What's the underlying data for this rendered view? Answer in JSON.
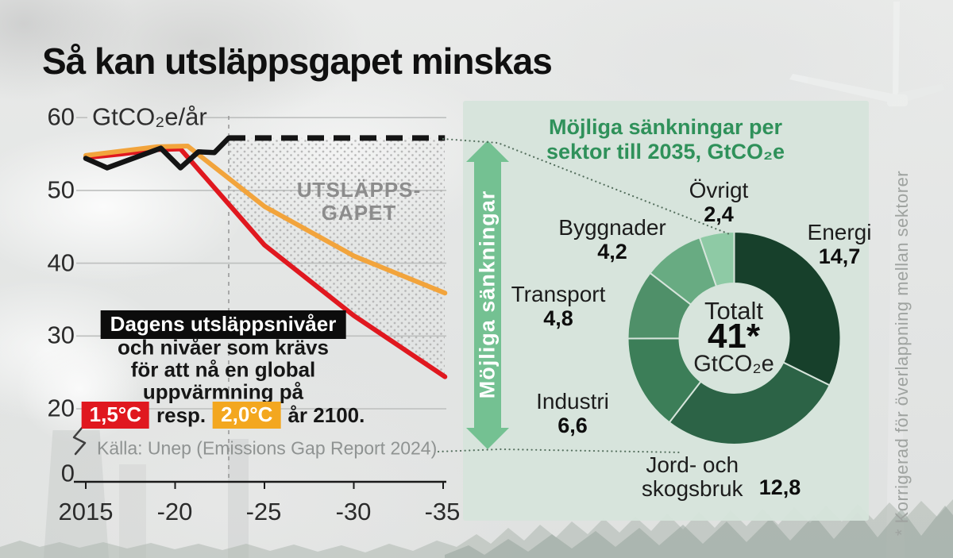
{
  "page_title": "Så kan utsläppsgapet minskas",
  "line_chart": {
    "unit_label": "GtCO₂e/år",
    "gap_label_1": "UTSLÄPPS-",
    "gap_label_2": "GAPET",
    "note": {
      "line1": "Dagens utsläppsnivåer",
      "line2": "och nivåer som krävs",
      "line3": "för att nå en global",
      "line4": "uppvärmning på",
      "temp_15": "1,5°C",
      "mid": "resp.",
      "temp_20": "2,0°C",
      "tail": "år 2100."
    },
    "source": "Källa: Unep (Emissions Gap Report 2024)"
  },
  "panel": {
    "title_line1": "Möjliga sänkningar per",
    "title_line2": "sektor till 2035, GtCO₂e",
    "arrow_label": "Möjliga sänkningar",
    "footnote": "* Korrigerad för överlappning mellan sektorer"
  },
  "colors": {
    "red_line": "#e0181f",
    "orange_line": "#f2a43c",
    "black_line": "#141414",
    "panel_green": "#d6e4db",
    "arrow_green": "#74c192",
    "title_green": "#2f915a",
    "grid_gray": "#bdbfbe",
    "dot_gray": "#b0b0b0"
  },
  "chart_data": [
    {
      "type": "line",
      "ylabel": "GtCO₂e/år",
      "x_range": [
        2015,
        2035
      ],
      "ylim": [
        0,
        60
      ],
      "y_ticks": [
        60,
        50,
        40,
        30,
        20,
        0
      ],
      "x_ticks": [
        {
          "year": 2015,
          "label": "2015"
        },
        {
          "year": 2020,
          "label": "-20"
        },
        {
          "year": 2025,
          "label": "-25"
        },
        {
          "year": 2030,
          "label": "-30"
        },
        {
          "year": 2035,
          "label": "-35"
        }
      ],
      "history_end_year": 2023,
      "series": [
        {
          "name": "1,5°C",
          "color": "#e0181f",
          "style": "solid",
          "width": 6,
          "points": [
            [
              2015,
              54.5
            ],
            [
              2017,
              55.0
            ],
            [
              2019,
              55.6
            ],
            [
              2020.3,
              55.7
            ],
            [
              2025,
              42.5
            ],
            [
              2030,
              32.8
            ],
            [
              2035.1,
              24.4
            ]
          ]
        },
        {
          "name": "2,0°C",
          "color": "#f2a43c",
          "style": "solid",
          "width": 6,
          "points": [
            [
              2015,
              54.8
            ],
            [
              2017,
              55.4
            ],
            [
              2019,
              56.0
            ],
            [
              2020.7,
              56.1
            ],
            [
              2025,
              47.8
            ],
            [
              2030,
              41.0
            ],
            [
              2035.1,
              35.9
            ]
          ]
        },
        {
          "name": "Dagens utsläppsnivåer (historik)",
          "color": "#141414",
          "style": "solid",
          "width": 6.5,
          "points": [
            [
              2015,
              54.4
            ],
            [
              2016.2,
              53.1
            ],
            [
              2019.2,
              55.8
            ],
            [
              2020.3,
              53.1
            ],
            [
              2021.3,
              55.3
            ],
            [
              2022.2,
              55.2
            ],
            [
              2023,
              57.2
            ]
          ]
        },
        {
          "name": "Dagens utsläppsnivåer (framskrivning)",
          "color": "#141414",
          "style": "dashed",
          "width": 7,
          "points": [
            [
              2023,
              57.2
            ],
            [
              2035.1,
              57.2
            ]
          ]
        }
      ]
    },
    {
      "type": "donut",
      "title": "Möjliga sänkningar per sektor till 2035, GtCO₂e",
      "center_label": "Totalt",
      "center_value": "41*",
      "center_unit": "GtCO₂e",
      "segments": [
        {
          "label": "Energi",
          "value": 14.7,
          "display": "14,7",
          "color": "#17402b"
        },
        {
          "label": "Jord- och skogsbruk",
          "value": 12.8,
          "display": "12,8",
          "color": "#2c6346"
        },
        {
          "label": "Industri",
          "value": 6.6,
          "display": "6,6",
          "color": "#3c7e58"
        },
        {
          "label": "Transport",
          "value": 4.8,
          "display": "4,8",
          "color": "#4f9069"
        },
        {
          "label": "Byggnader",
          "value": 4.2,
          "display": "4,2",
          "color": "#68ab82"
        },
        {
          "label": "Övrigt",
          "value": 2.4,
          "display": "2,4",
          "color": "#8ecaa5"
        }
      ]
    }
  ]
}
